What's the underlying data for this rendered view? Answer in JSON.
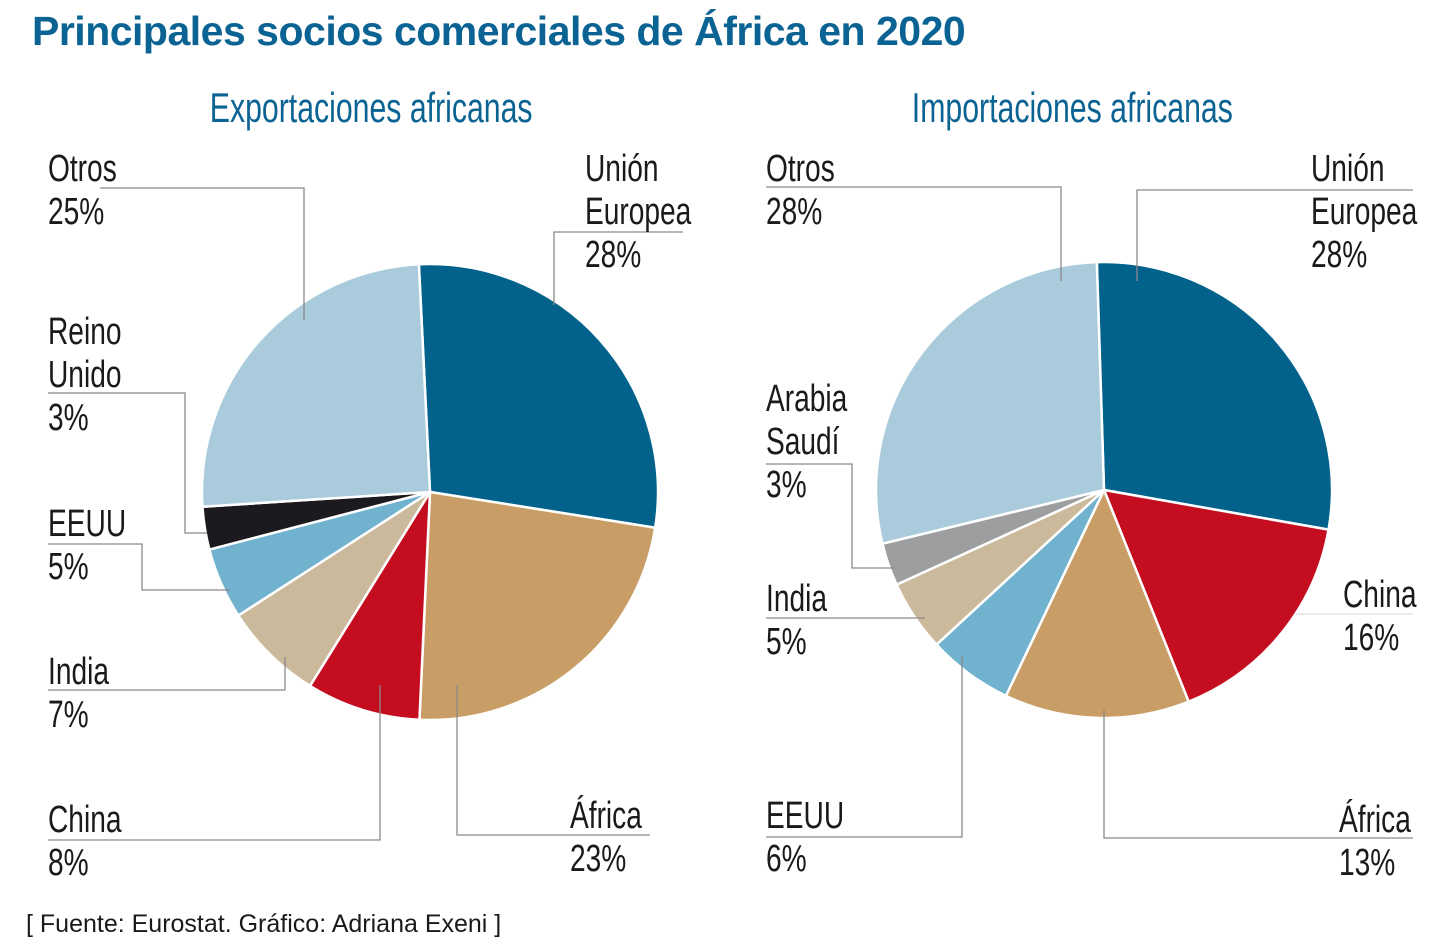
{
  "title": "Principales socios comerciales de África en 2020",
  "source": "[ Fuente: Eurostat. Gráfico: Adriana Exeni ]",
  "chart_data": [
    {
      "type": "pie",
      "title": "Exportaciones africanas",
      "categories": [
        "Unión\nEuropea",
        "África",
        "China",
        "India",
        "EEUU",
        "Reino\nUnido",
        "Otros"
      ],
      "values": [
        28,
        23,
        8,
        7,
        5,
        3,
        25
      ],
      "value_labels": [
        "28%",
        "23%",
        "8%",
        "7%",
        "5%",
        "3%",
        "25%"
      ],
      "colors": [
        "#02628c",
        "#c89e66",
        "#c40e20",
        "#cbb99b",
        "#71b2cf",
        "#1c1a1e",
        "#a9cbdc"
      ]
    },
    {
      "type": "pie",
      "title": "Importaciones africanas",
      "categories": [
        "Unión\nEuropea",
        "China",
        "África",
        "EEUU",
        "India",
        "Arabia\nSaudí",
        "Otros"
      ],
      "values": [
        28,
        16,
        13,
        6,
        5,
        3,
        28
      ],
      "value_labels": [
        "28%",
        "16%",
        "13%",
        "6%",
        "5%",
        "3%",
        "28%"
      ],
      "colors": [
        "#02628c",
        "#c40e20",
        "#c89e66",
        "#71b2cf",
        "#cbb99b",
        "#9d9ea0",
        "#a9cbdc"
      ]
    }
  ]
}
